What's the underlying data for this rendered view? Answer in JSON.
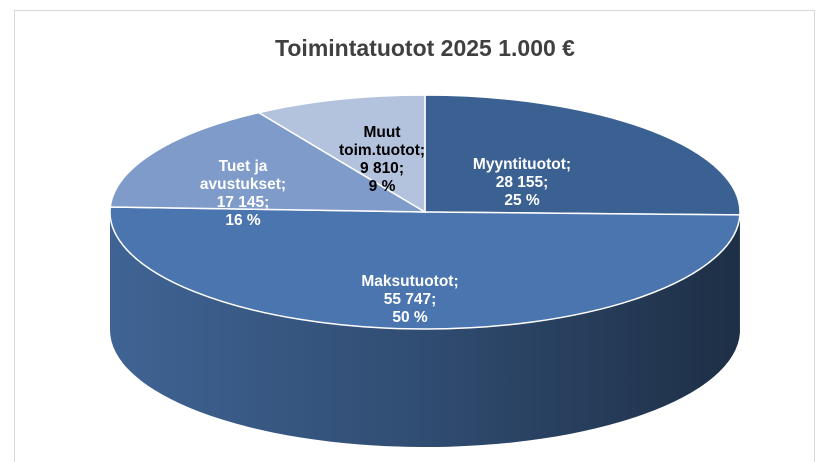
{
  "chart_data": {
    "type": "pie3d",
    "title": "Toimintatuotot 2025 1.000 €",
    "categories": [
      "Myyntituotot",
      "Maksutuotot",
      "Tuet ja avustukset",
      "Muut toim.tuotot"
    ],
    "values": [
      28155,
      55747,
      17145,
      9810
    ],
    "value_labels": [
      "28 155",
      "55 747",
      "17 145",
      "9 810"
    ],
    "percentages": [
      25,
      50,
      16,
      9
    ],
    "percentage_labels": [
      "25 %",
      "50 %",
      "16 %",
      "9 %"
    ],
    "label_separator": ";",
    "colors": [
      "#3b6193",
      "#4a75ae",
      "#7e9bca",
      "#b3c2dd"
    ]
  }
}
